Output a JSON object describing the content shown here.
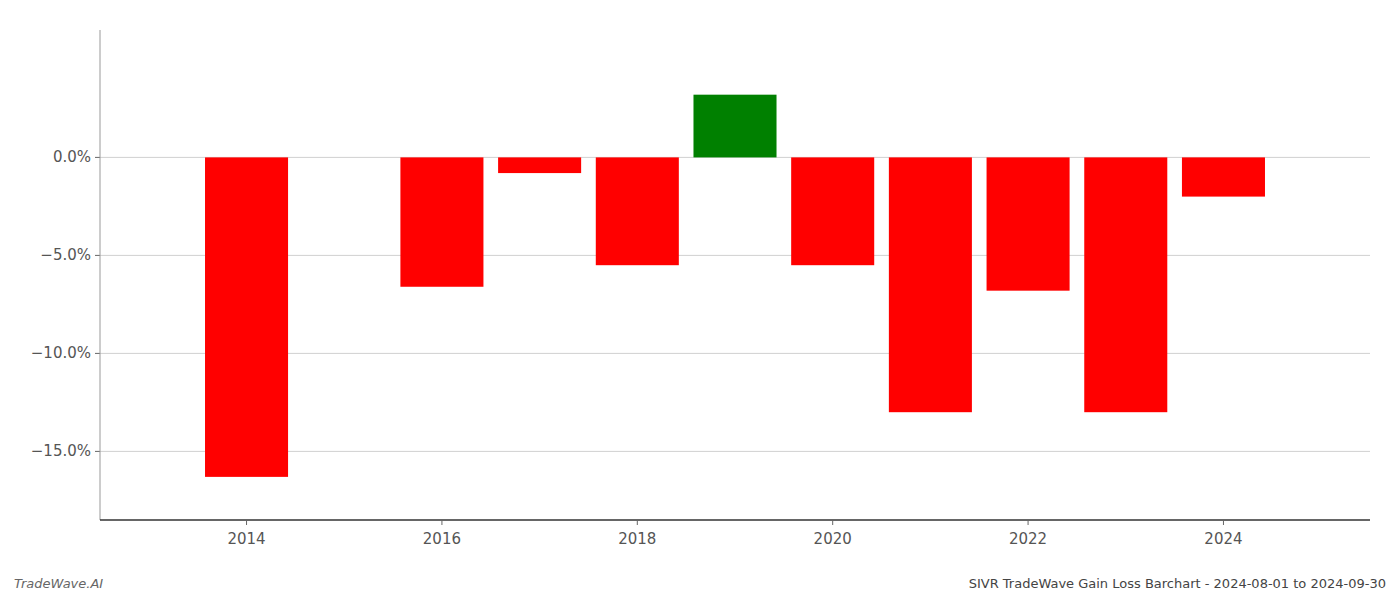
{
  "chart_data": {
    "type": "bar",
    "title": "SIVR TradeWave Gain Loss Barchart - 2024-08-01 to 2024-09-30",
    "annotations": [
      "TradeWave.AI"
    ],
    "x": [
      2014,
      2016,
      2017,
      2018,
      2019,
      2020,
      2021,
      2022,
      2023,
      2024
    ],
    "values": [
      -0.163,
      -0.066,
      -0.008,
      -0.055,
      0.032,
      -0.055,
      -0.13,
      -0.068,
      -0.13,
      -0.02
    ],
    "colors": [
      "#ff0000",
      "#ff0000",
      "#ff0000",
      "#ff0000",
      "#008000",
      "#ff0000",
      "#ff0000",
      "#ff0000",
      "#ff0000",
      "#ff0000"
    ],
    "xlim": [
      2012.5,
      2025.5
    ],
    "xticks": [
      2014,
      2016,
      2018,
      2020,
      2022,
      2024
    ],
    "ylim": [
      -0.185,
      0.065
    ],
    "yticks": [
      {
        "value": 0.0,
        "label": "0.0%"
      },
      {
        "value": -0.05,
        "label": "−5.0%"
      },
      {
        "value": -0.1,
        "label": "−10.0%"
      },
      {
        "value": -0.15,
        "label": "−15.0%"
      }
    ],
    "grid": true
  }
}
